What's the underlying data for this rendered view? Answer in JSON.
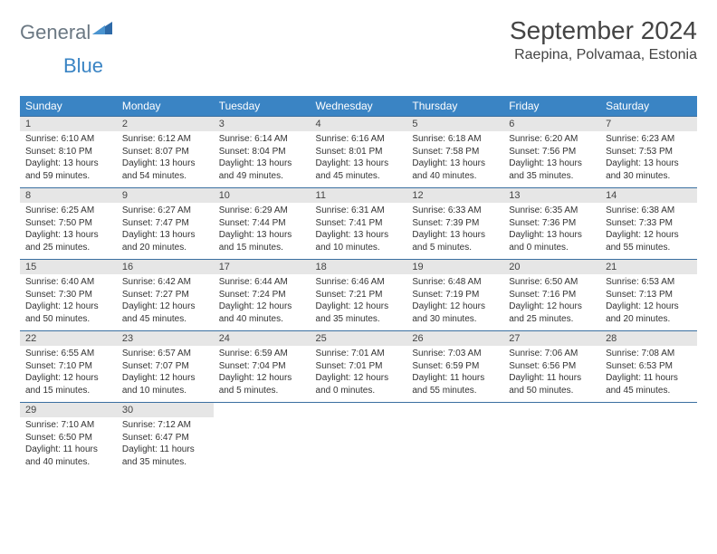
{
  "logo": {
    "text_general": "General",
    "text_blue": "Blue"
  },
  "title": "September 2024",
  "location": "Raepina, Polvamaa, Estonia",
  "colors": {
    "header_bg": "#3a84c4",
    "header_text": "#ffffff",
    "daynum_bg": "#e6e6e6",
    "cell_border": "#3a6fa0",
    "logo_gray": "#6b7883",
    "logo_blue": "#3a84c4"
  },
  "day_headers": [
    "Sunday",
    "Monday",
    "Tuesday",
    "Wednesday",
    "Thursday",
    "Friday",
    "Saturday"
  ],
  "weeks": [
    [
      {
        "n": "1",
        "sunrise": "Sunrise: 6:10 AM",
        "sunset": "Sunset: 8:10 PM",
        "day1": "Daylight: 13 hours",
        "day2": "and 59 minutes."
      },
      {
        "n": "2",
        "sunrise": "Sunrise: 6:12 AM",
        "sunset": "Sunset: 8:07 PM",
        "day1": "Daylight: 13 hours",
        "day2": "and 54 minutes."
      },
      {
        "n": "3",
        "sunrise": "Sunrise: 6:14 AM",
        "sunset": "Sunset: 8:04 PM",
        "day1": "Daylight: 13 hours",
        "day2": "and 49 minutes."
      },
      {
        "n": "4",
        "sunrise": "Sunrise: 6:16 AM",
        "sunset": "Sunset: 8:01 PM",
        "day1": "Daylight: 13 hours",
        "day2": "and 45 minutes."
      },
      {
        "n": "5",
        "sunrise": "Sunrise: 6:18 AM",
        "sunset": "Sunset: 7:58 PM",
        "day1": "Daylight: 13 hours",
        "day2": "and 40 minutes."
      },
      {
        "n": "6",
        "sunrise": "Sunrise: 6:20 AM",
        "sunset": "Sunset: 7:56 PM",
        "day1": "Daylight: 13 hours",
        "day2": "and 35 minutes."
      },
      {
        "n": "7",
        "sunrise": "Sunrise: 6:23 AM",
        "sunset": "Sunset: 7:53 PM",
        "day1": "Daylight: 13 hours",
        "day2": "and 30 minutes."
      }
    ],
    [
      {
        "n": "8",
        "sunrise": "Sunrise: 6:25 AM",
        "sunset": "Sunset: 7:50 PM",
        "day1": "Daylight: 13 hours",
        "day2": "and 25 minutes."
      },
      {
        "n": "9",
        "sunrise": "Sunrise: 6:27 AM",
        "sunset": "Sunset: 7:47 PM",
        "day1": "Daylight: 13 hours",
        "day2": "and 20 minutes."
      },
      {
        "n": "10",
        "sunrise": "Sunrise: 6:29 AM",
        "sunset": "Sunset: 7:44 PM",
        "day1": "Daylight: 13 hours",
        "day2": "and 15 minutes."
      },
      {
        "n": "11",
        "sunrise": "Sunrise: 6:31 AM",
        "sunset": "Sunset: 7:41 PM",
        "day1": "Daylight: 13 hours",
        "day2": "and 10 minutes."
      },
      {
        "n": "12",
        "sunrise": "Sunrise: 6:33 AM",
        "sunset": "Sunset: 7:39 PM",
        "day1": "Daylight: 13 hours",
        "day2": "and 5 minutes."
      },
      {
        "n": "13",
        "sunrise": "Sunrise: 6:35 AM",
        "sunset": "Sunset: 7:36 PM",
        "day1": "Daylight: 13 hours",
        "day2": "and 0 minutes."
      },
      {
        "n": "14",
        "sunrise": "Sunrise: 6:38 AM",
        "sunset": "Sunset: 7:33 PM",
        "day1": "Daylight: 12 hours",
        "day2": "and 55 minutes."
      }
    ],
    [
      {
        "n": "15",
        "sunrise": "Sunrise: 6:40 AM",
        "sunset": "Sunset: 7:30 PM",
        "day1": "Daylight: 12 hours",
        "day2": "and 50 minutes."
      },
      {
        "n": "16",
        "sunrise": "Sunrise: 6:42 AM",
        "sunset": "Sunset: 7:27 PM",
        "day1": "Daylight: 12 hours",
        "day2": "and 45 minutes."
      },
      {
        "n": "17",
        "sunrise": "Sunrise: 6:44 AM",
        "sunset": "Sunset: 7:24 PM",
        "day1": "Daylight: 12 hours",
        "day2": "and 40 minutes."
      },
      {
        "n": "18",
        "sunrise": "Sunrise: 6:46 AM",
        "sunset": "Sunset: 7:21 PM",
        "day1": "Daylight: 12 hours",
        "day2": "and 35 minutes."
      },
      {
        "n": "19",
        "sunrise": "Sunrise: 6:48 AM",
        "sunset": "Sunset: 7:19 PM",
        "day1": "Daylight: 12 hours",
        "day2": "and 30 minutes."
      },
      {
        "n": "20",
        "sunrise": "Sunrise: 6:50 AM",
        "sunset": "Sunset: 7:16 PM",
        "day1": "Daylight: 12 hours",
        "day2": "and 25 minutes."
      },
      {
        "n": "21",
        "sunrise": "Sunrise: 6:53 AM",
        "sunset": "Sunset: 7:13 PM",
        "day1": "Daylight: 12 hours",
        "day2": "and 20 minutes."
      }
    ],
    [
      {
        "n": "22",
        "sunrise": "Sunrise: 6:55 AM",
        "sunset": "Sunset: 7:10 PM",
        "day1": "Daylight: 12 hours",
        "day2": "and 15 minutes."
      },
      {
        "n": "23",
        "sunrise": "Sunrise: 6:57 AM",
        "sunset": "Sunset: 7:07 PM",
        "day1": "Daylight: 12 hours",
        "day2": "and 10 minutes."
      },
      {
        "n": "24",
        "sunrise": "Sunrise: 6:59 AM",
        "sunset": "Sunset: 7:04 PM",
        "day1": "Daylight: 12 hours",
        "day2": "and 5 minutes."
      },
      {
        "n": "25",
        "sunrise": "Sunrise: 7:01 AM",
        "sunset": "Sunset: 7:01 PM",
        "day1": "Daylight: 12 hours",
        "day2": "and 0 minutes."
      },
      {
        "n": "26",
        "sunrise": "Sunrise: 7:03 AM",
        "sunset": "Sunset: 6:59 PM",
        "day1": "Daylight: 11 hours",
        "day2": "and 55 minutes."
      },
      {
        "n": "27",
        "sunrise": "Sunrise: 7:06 AM",
        "sunset": "Sunset: 6:56 PM",
        "day1": "Daylight: 11 hours",
        "day2": "and 50 minutes."
      },
      {
        "n": "28",
        "sunrise": "Sunrise: 7:08 AM",
        "sunset": "Sunset: 6:53 PM",
        "day1": "Daylight: 11 hours",
        "day2": "and 45 minutes."
      }
    ],
    [
      {
        "n": "29",
        "sunrise": "Sunrise: 7:10 AM",
        "sunset": "Sunset: 6:50 PM",
        "day1": "Daylight: 11 hours",
        "day2": "and 40 minutes."
      },
      {
        "n": "30",
        "sunrise": "Sunrise: 7:12 AM",
        "sunset": "Sunset: 6:47 PM",
        "day1": "Daylight: 11 hours",
        "day2": "and 35 minutes."
      },
      null,
      null,
      null,
      null,
      null
    ]
  ]
}
